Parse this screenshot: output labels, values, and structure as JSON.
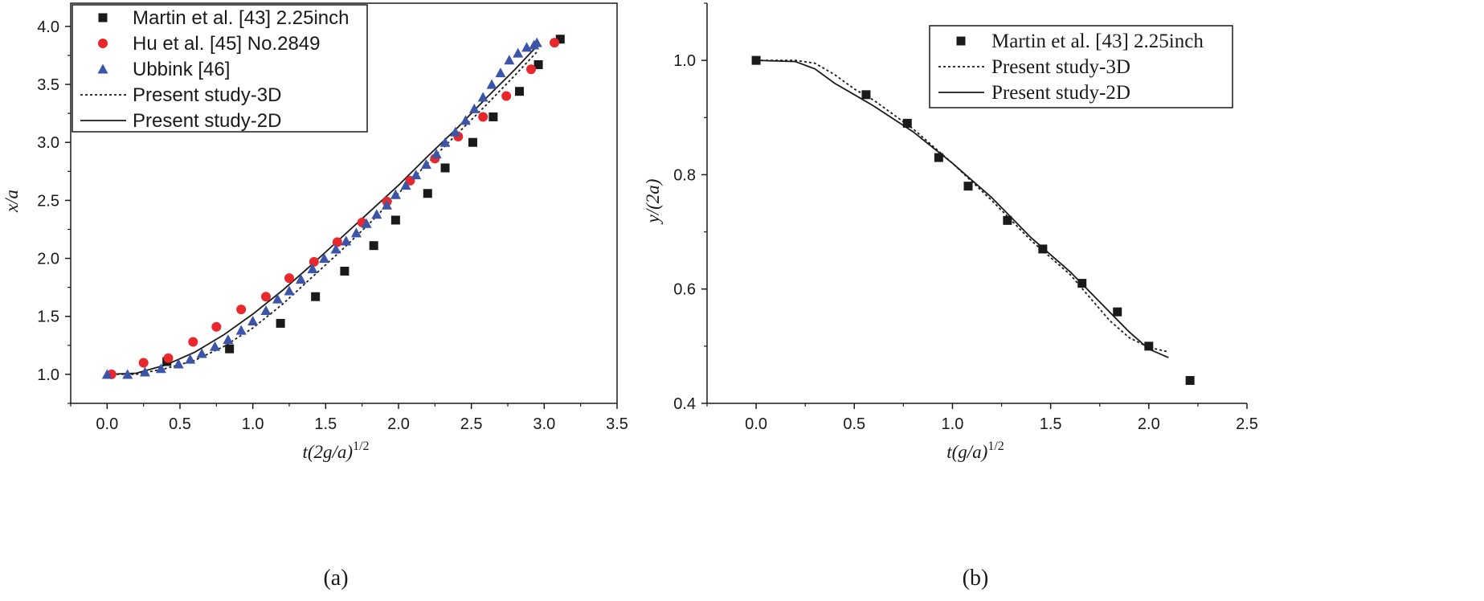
{
  "colors": {
    "black_marker": "#1a1a1a",
    "red_marker": "#e8282d",
    "blue_marker": "#3d55a8",
    "line": "#1a1a1a"
  },
  "chart_data": [
    {
      "type": "scatter",
      "panel_label": "(a)",
      "xlabel": "t(2g/a)^1/2",
      "ylabel": "x/a",
      "xlim": [
        -0.25,
        3.5
      ],
      "ylim": [
        0.75,
        4.2
      ],
      "xticks": [
        "0.0",
        "0.5",
        "1.0",
        "1.5",
        "2.0",
        "2.5",
        "3.0",
        "3.5"
      ],
      "yticks": [
        "1.0",
        "1.5",
        "2.0",
        "2.5",
        "3.0",
        "3.5",
        "4.0"
      ],
      "legend_position": "top-left",
      "series": [
        {
          "name": "Martin et al. [43] 2.25inch",
          "marker": "square",
          "color": "#1a1a1a",
          "x": [
            0.41,
            0.84,
            1.19,
            1.43,
            1.63,
            1.83,
            1.98,
            2.2,
            2.32,
            2.51,
            2.65,
            2.83,
            2.96,
            3.11
          ],
          "y": [
            1.11,
            1.22,
            1.44,
            1.67,
            1.89,
            2.11,
            2.33,
            2.56,
            2.78,
            3.0,
            3.22,
            3.44,
            3.67,
            3.89
          ]
        },
        {
          "name": "Hu et al. [45] No.2849",
          "marker": "circle",
          "color": "#e8282d",
          "x": [
            0.03,
            0.25,
            0.42,
            0.59,
            0.75,
            0.92,
            1.09,
            1.25,
            1.42,
            1.58,
            1.75,
            1.92,
            2.08,
            2.25,
            2.41,
            2.58,
            2.74,
            2.91,
            3.07
          ],
          "y": [
            1.0,
            1.1,
            1.14,
            1.28,
            1.41,
            1.56,
            1.67,
            1.83,
            1.97,
            2.14,
            2.31,
            2.49,
            2.67,
            2.86,
            3.05,
            3.22,
            3.4,
            3.63,
            3.86
          ]
        },
        {
          "name": "Ubbink [46]",
          "marker": "triangle",
          "color": "#3d55a8",
          "x": [
            0.0,
            0.14,
            0.26,
            0.37,
            0.49,
            0.57,
            0.65,
            0.74,
            0.83,
            0.92,
            1.0,
            1.09,
            1.17,
            1.25,
            1.33,
            1.41,
            1.49,
            1.57,
            1.64,
            1.71,
            1.78,
            1.85,
            1.92,
            1.98,
            2.05,
            2.12,
            2.19,
            2.26,
            2.32,
            2.39,
            2.46,
            2.52,
            2.58,
            2.64,
            2.7,
            2.76,
            2.82,
            2.88,
            2.93,
            2.95
          ],
          "y": [
            1.0,
            1.0,
            1.02,
            1.05,
            1.09,
            1.13,
            1.18,
            1.24,
            1.3,
            1.38,
            1.46,
            1.55,
            1.65,
            1.72,
            1.82,
            1.91,
            2.0,
            2.08,
            2.15,
            2.22,
            2.3,
            2.38,
            2.46,
            2.55,
            2.63,
            2.72,
            2.81,
            2.9,
            3.0,
            3.09,
            3.19,
            3.29,
            3.39,
            3.5,
            3.6,
            3.71,
            3.77,
            3.82,
            3.84,
            3.86
          ]
        },
        {
          "name": "Present study-3D",
          "line_style": "dotted",
          "color": "#1a1a1a",
          "x": [
            0.0,
            0.2,
            0.4,
            0.6,
            0.8,
            1.0,
            1.2,
            1.4,
            1.6,
            1.8,
            2.0,
            2.2,
            2.4,
            2.6,
            2.8,
            2.95
          ],
          "y": [
            1.0,
            1.0,
            1.05,
            1.12,
            1.24,
            1.4,
            1.6,
            1.83,
            2.06,
            2.3,
            2.56,
            2.82,
            3.07,
            3.32,
            3.58,
            3.78
          ]
        },
        {
          "name": "Present study-2D",
          "line_style": "solid",
          "color": "#1a1a1a",
          "x": [
            0.0,
            0.2,
            0.4,
            0.6,
            0.8,
            1.0,
            1.2,
            1.4,
            1.6,
            1.8,
            2.0,
            2.2,
            2.4,
            2.6,
            2.8,
            2.95
          ],
          "y": [
            1.0,
            1.01,
            1.08,
            1.19,
            1.34,
            1.52,
            1.72,
            1.94,
            2.17,
            2.4,
            2.63,
            2.88,
            3.12,
            3.38,
            3.63,
            3.83
          ]
        }
      ]
    },
    {
      "type": "scatter",
      "panel_label": "(b)",
      "xlabel": "t(g/a)^1/2",
      "ylabel": "y/(2a)",
      "xlim": [
        -0.25,
        2.5
      ],
      "ylim": [
        0.4,
        1.1
      ],
      "xticks": [
        "0.0",
        "0.5",
        "1.0",
        "1.5",
        "2.0",
        "2.5"
      ],
      "yticks": [
        "0.4",
        "0.6",
        "0.8",
        "1.0"
      ],
      "legend_position": "top-right",
      "series": [
        {
          "name": "Martin et al. [43] 2.25inch",
          "marker": "square",
          "color": "#1a1a1a",
          "x": [
            0.0,
            0.56,
            0.77,
            0.93,
            1.08,
            1.28,
            1.46,
            1.66,
            1.84,
            2.0,
            2.21
          ],
          "y": [
            1.0,
            0.94,
            0.89,
            0.83,
            0.78,
            0.72,
            0.67,
            0.61,
            0.56,
            0.5,
            0.44
          ]
        },
        {
          "name": "Present study-3D",
          "line_style": "dotted",
          "color": "#1a1a1a",
          "x": [
            0.0,
            0.2,
            0.3,
            0.4,
            0.5,
            0.6,
            0.8,
            1.0,
            1.2,
            1.4,
            1.6,
            1.8,
            1.9,
            2.0,
            2.1
          ],
          "y": [
            1.0,
            1.0,
            0.995,
            0.975,
            0.95,
            0.93,
            0.88,
            0.82,
            0.755,
            0.685,
            0.625,
            0.545,
            0.515,
            0.498,
            0.49
          ]
        },
        {
          "name": "Present study-2D",
          "line_style": "solid",
          "color": "#1a1a1a",
          "x": [
            0.0,
            0.2,
            0.3,
            0.4,
            0.5,
            0.6,
            0.8,
            1.0,
            1.2,
            1.4,
            1.6,
            1.8,
            1.9,
            2.0,
            2.1
          ],
          "y": [
            1.0,
            0.998,
            0.985,
            0.96,
            0.94,
            0.92,
            0.875,
            0.82,
            0.76,
            0.69,
            0.63,
            0.56,
            0.525,
            0.495,
            0.48
          ]
        }
      ]
    }
  ]
}
